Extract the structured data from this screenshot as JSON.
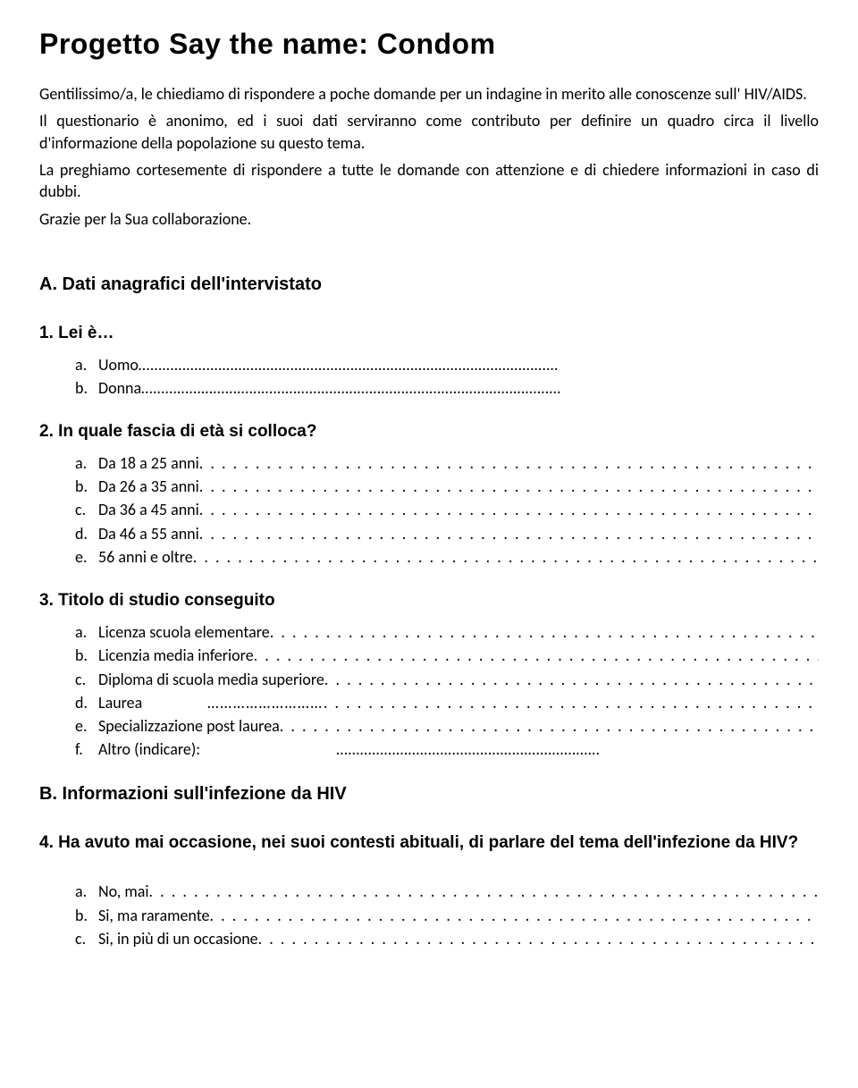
{
  "title": "Progetto Say the name: Condom",
  "intro_p1": "Gentilissimo/a, le chiediamo di rispondere a poche domande per un indagine in merito alle conoscenze sull' HIV/AIDS.",
  "intro_p2": "Il questionario è anonimo, ed i suoi dati serviranno come contributo per definire un quadro circa il livello d'informazione della popolazione su questo tema.",
  "intro_p3": " La preghiamo cortesemente di rispondere a tutte le domande con attenzione e di chiedere informazioni in caso di dubbi.",
  "thanks": "Grazie per la Sua collaborazione.",
  "section_a": "A. Dati anagrafici dell'intervistato",
  "q1": {
    "num": "1.",
    "title": "Lei è…",
    "options": [
      {
        "letter": "a.",
        "text": "Uomo",
        "fill": "ellipsis"
      },
      {
        "letter": "b.",
        "text": "Donna",
        "fill": "ellipsis"
      }
    ]
  },
  "q2": {
    "num": "2.",
    "title": "In quale fascia di età si colloca?",
    "options": [
      {
        "letter": "a.",
        "text": "Da 18 a 25 anni",
        "fill": "dots"
      },
      {
        "letter": "b.",
        "text": "Da 26 a 35 anni",
        "fill": "dots"
      },
      {
        "letter": "c.",
        "text": "Da 36 a 45 anni",
        "fill": "dots"
      },
      {
        "letter": "d.",
        "text": "Da 46 a 55 anni",
        "fill": "dots"
      },
      {
        "letter": "e.",
        "text": "56 anni e oltre",
        "fill": "dots"
      }
    ]
  },
  "q3": {
    "num": "3.",
    "title": "Titolo di studio conseguito",
    "options": [
      {
        "letter": "a.",
        "text": "Licenza scuola elementare",
        "fill": "dots"
      },
      {
        "letter": "b.",
        "text": "Licenzia media inferiore",
        "fill": "dots"
      },
      {
        "letter": "c.",
        "text": "Diploma di scuola media superiore",
        "fill": "dots"
      },
      {
        "letter": "d.",
        "text": "Laurea",
        "fill": "mixed"
      },
      {
        "letter": "e.",
        "text": "Specializzazione post laurea",
        "fill": "dots"
      },
      {
        "letter": "f.",
        "text": "Altro (indicare):",
        "fill": "ellipsis-right"
      }
    ]
  },
  "section_b": "B. Informazioni sull'infezione da HIV",
  "q4": {
    "num": "4.",
    "title": "Ha avuto mai occasione, nei suoi contesti abituali, di parlare del tema dell'infezione da HIV?",
    "options": [
      {
        "letter": "a.",
        "text": "No, mai",
        "fill": "dots"
      },
      {
        "letter": "b.",
        "text": "Si, ma raramente",
        "fill": "dots"
      },
      {
        "letter": "c.",
        "text": "Si, in più di un occasione",
        "fill": "dots"
      }
    ]
  },
  "fill_dots": ". . . . . . . . . . . . . . . . . . . . . . . . . . . . . . . . . . . . . . . . . . . . . . . . . . . . . . . . . . . . . . . . . . . . . . . . . .",
  "fill_ellipsis": "……………………………………………………………………………………………",
  "fill_mixed": "            ………………………. . . . . . . . . . . . . . . . . . . . . . . . . . . . . . . . . . . . . . . . . . . . .",
  "fill_ellipsis_right": "                              …………………………………………………………"
}
